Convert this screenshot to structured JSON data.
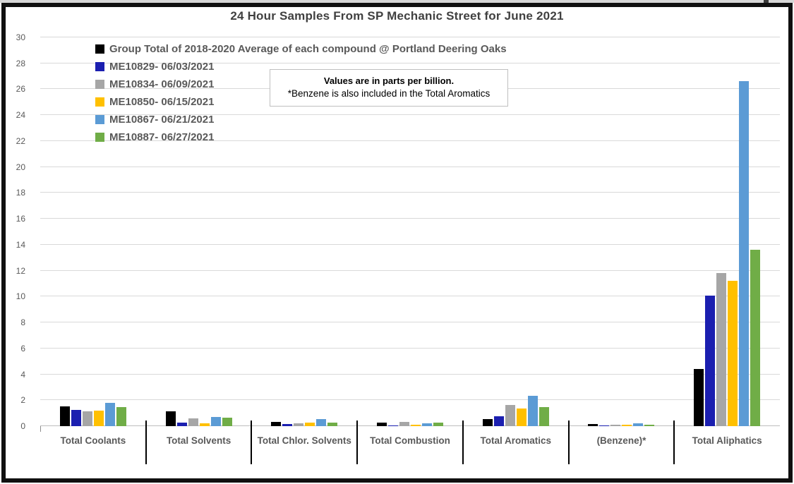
{
  "title": "24 Hour Samples From SP Mechanic Street for June 2021",
  "annotation": {
    "line1": "Values are in parts per billion.",
    "line2": "*Benzene is also included in the Total Aromatics"
  },
  "chart_data": {
    "type": "bar",
    "title": "24 Hour Samples From SP Mechanic Street for June 2021",
    "units": "parts per billion",
    "ylim": [
      0,
      30
    ],
    "ytick_step": 2,
    "grid": true,
    "legend_position": "top-left-inside",
    "categories": [
      "Total Coolants",
      "Total Solvents",
      "Total Chlor. Solvents",
      "Total Combustion",
      "Total Aromatics",
      "(Benzene)*",
      "Total Aliphatics"
    ],
    "series": [
      {
        "name": "Group Total of 2018-2020 Average of each compound @ Portland Deering Oaks",
        "color": "#000000",
        "values": [
          1.55,
          1.15,
          0.35,
          0.25,
          0.55,
          0.18,
          4.4
        ]
      },
      {
        "name": "ME10829- 06/03/2021",
        "color": "#1b1fb0",
        "values": [
          1.25,
          0.25,
          0.17,
          0.08,
          0.77,
          0.06,
          10.1
        ]
      },
      {
        "name": "ME10834- 06/09/2021",
        "color": "#a6a6a6",
        "values": [
          1.15,
          0.6,
          0.2,
          0.35,
          1.65,
          0.13,
          11.8
        ]
      },
      {
        "name": "ME10850- 06/15/2021",
        "color": "#ffc000",
        "values": [
          1.2,
          0.22,
          0.28,
          0.1,
          1.35,
          0.11,
          11.2
        ]
      },
      {
        "name": "ME10867- 06/21/2021",
        "color": "#5b9bd5",
        "values": [
          1.8,
          0.7,
          0.55,
          0.22,
          2.35,
          0.24,
          26.6
        ]
      },
      {
        "name": "ME10887- 06/27/2021",
        "color": "#70ad47",
        "values": [
          1.45,
          0.65,
          0.28,
          0.28,
          1.45,
          0.1,
          13.6
        ]
      }
    ]
  },
  "colors": {
    "title_text": "#404040",
    "axis_text": "#595959",
    "gridline": "#d9d9d9",
    "separator": "#000000",
    "annotation_border": "#bfbfbf",
    "frame": "#101010"
  }
}
